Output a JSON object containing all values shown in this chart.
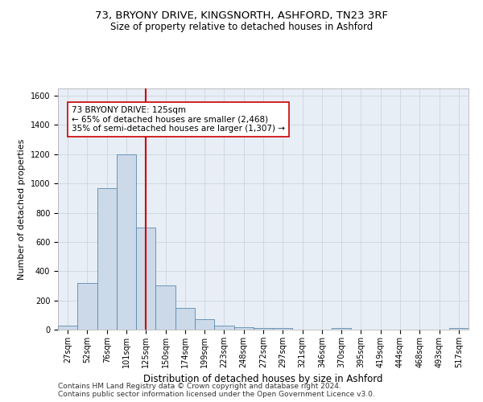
{
  "title_line1": "73, BRYONY DRIVE, KINGSNORTH, ASHFORD, TN23 3RF",
  "title_line2": "Size of property relative to detached houses in Ashford",
  "xlabel": "Distribution of detached houses by size in Ashford",
  "ylabel": "Number of detached properties",
  "bar_labels": [
    "27sqm",
    "52sqm",
    "76sqm",
    "101sqm",
    "125sqm",
    "150sqm",
    "174sqm",
    "199sqm",
    "223sqm",
    "248sqm",
    "272sqm",
    "297sqm",
    "321sqm",
    "346sqm",
    "370sqm",
    "395sqm",
    "419sqm",
    "444sqm",
    "468sqm",
    "493sqm",
    "517sqm"
  ],
  "bar_values": [
    30,
    320,
    970,
    1200,
    700,
    300,
    150,
    70,
    25,
    15,
    10,
    10,
    0,
    0,
    10,
    0,
    0,
    0,
    0,
    0,
    10
  ],
  "bar_color": "#ccd9e8",
  "bar_edge_color": "#5a8ab0",
  "annotation_text": "73 BRYONY DRIVE: 125sqm\n← 65% of detached houses are smaller (2,468)\n35% of semi-detached houses are larger (1,307) →",
  "vline_x_index": 4,
  "vline_color": "#cc0000",
  "annotation_box_color": "#ffffff",
  "annotation_box_edge": "#cc0000",
  "ylim": [
    0,
    1650
  ],
  "yticks": [
    0,
    200,
    400,
    600,
    800,
    1000,
    1200,
    1400,
    1600
  ],
  "footer_line1": "Contains HM Land Registry data © Crown copyright and database right 2024.",
  "footer_line2": "Contains public sector information licensed under the Open Government Licence v3.0.",
  "bg_color": "#ffffff",
  "plot_bg_color": "#e8eef5",
  "grid_color": "#c8d0da",
  "title1_fontsize": 9.5,
  "title2_fontsize": 8.5,
  "tick_fontsize": 7,
  "ylabel_fontsize": 8,
  "xlabel_fontsize": 8.5,
  "footer_fontsize": 6.5,
  "annotation_fontsize": 7.5
}
